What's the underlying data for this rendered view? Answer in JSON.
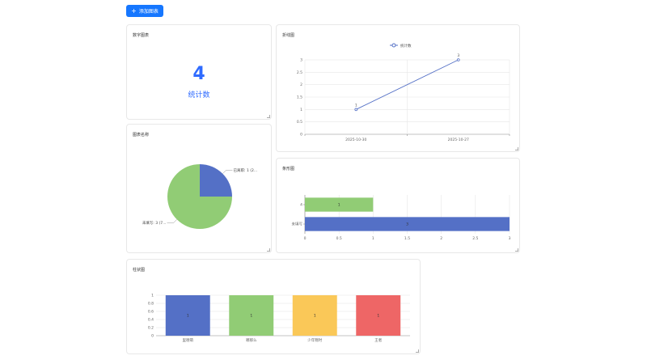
{
  "toolbar": {
    "add_label": "添加图表",
    "accent": "#1677ff"
  },
  "cards": {
    "number": {
      "title": "数字图表",
      "value": "4",
      "label": "统计数"
    },
    "line": {
      "title": "折线图"
    },
    "pie": {
      "title": "图表名称"
    },
    "hbar": {
      "title": "条形图"
    },
    "vbar": {
      "title": "柱状图"
    }
  },
  "chart_data": [
    {
      "type": "line",
      "title": "折线图",
      "legend": [
        "统计数"
      ],
      "categories": [
        "2025-10-30",
        "2025-10-27"
      ],
      "series": [
        {
          "name": "统计数",
          "values": [
            1,
            3
          ],
          "color": "#5470c6"
        }
      ],
      "ylim": [
        0,
        3
      ],
      "yticks": [
        "0",
        "0.5",
        "1",
        "1.5",
        "2",
        "2.5",
        "3"
      ],
      "grid": true
    },
    {
      "type": "pie",
      "title": "图表名称",
      "slices": [
        {
          "label": "已离职: 1 (2...",
          "value": 1,
          "color": "#5470c6"
        },
        {
          "label": "未填写: 3 (7...",
          "value": 3,
          "color": "#91cc75"
        }
      ]
    },
    {
      "type": "bar",
      "orientation": "horizontal",
      "title": "条形图",
      "categories": [
        "未填写",
        "4"
      ],
      "values": [
        3,
        1
      ],
      "colors": [
        "#5470c6",
        "#91cc75"
      ],
      "xlim": [
        0,
        3
      ],
      "xticks": [
        "0",
        "0.5",
        "1",
        "1.5",
        "2",
        "2.5",
        "3"
      ]
    },
    {
      "type": "bar",
      "title": "柱状图",
      "categories": [
        "里德萌",
        "哪那么",
        "少年锦时",
        "王者"
      ],
      "values": [
        1,
        1,
        1,
        1
      ],
      "colors": [
        "#5470c6",
        "#91cc75",
        "#fac858",
        "#ee6666"
      ],
      "ylim": [
        0,
        1
      ],
      "yticks": [
        "0",
        "0.2",
        "0.4",
        "0.6",
        "0.8",
        "1"
      ]
    }
  ]
}
